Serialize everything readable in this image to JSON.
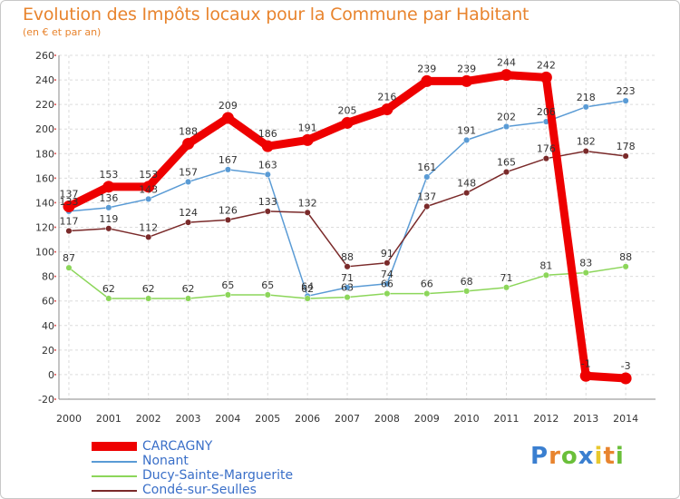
{
  "title": "Evolution des Impôts locaux pour la Commune par Habitant",
  "subtitle": "(en € et par an)",
  "brand": "Proxiti",
  "chart_data": {
    "type": "line",
    "title": "Evolution des Impôts locaux pour la Commune par Habitant",
    "subtitle": "(en € et par an)",
    "x": [
      "2000",
      "2001",
      "2002",
      "2003",
      "2004",
      "2005",
      "2006",
      "2007",
      "2008",
      "2009",
      "2010",
      "2011",
      "2012",
      "2013",
      "2014"
    ],
    "ylim": [
      -20,
      260
    ],
    "yticks": [
      -20,
      0,
      20,
      40,
      60,
      80,
      100,
      120,
      140,
      160,
      180,
      200,
      220,
      240,
      260
    ],
    "grid": true,
    "legend_position": "bottom-left",
    "series": [
      {
        "name": "Nonant",
        "color": "#5a9bd5",
        "values": [
          133,
          136,
          143,
          157,
          167,
          163,
          64,
          71,
          74,
          161,
          191,
          202,
          206,
          218,
          223
        ],
        "labels": [
          "133",
          "136",
          "143",
          "157",
          "167",
          "163",
          "64",
          "71",
          "74",
          "161",
          "191",
          "202",
          "206",
          "218",
          "223"
        ]
      },
      {
        "name": "Ducy-Sainte-Marguerite",
        "color": "#8cd65a",
        "values": [
          87,
          62,
          62,
          62,
          65,
          65,
          62,
          63,
          66,
          66,
          68,
          71,
          81,
          83,
          88
        ],
        "labels": [
          "87",
          "62",
          "62",
          "62",
          "65",
          "65",
          "62",
          "63",
          "66",
          "66",
          "68",
          "71",
          "81",
          "83",
          "88"
        ]
      },
      {
        "name": "Condé-sur-Seulles",
        "color": "#7a2a2a",
        "values": [
          117,
          119,
          112,
          124,
          126,
          133,
          132,
          88,
          91,
          137,
          148,
          165,
          176,
          182,
          178
        ],
        "labels": [
          "117",
          "119",
          "112",
          "124",
          "126",
          "133",
          "132",
          "88",
          "91",
          "137",
          "148",
          "165",
          "176",
          "182",
          "178"
        ]
      },
      {
        "name": "CARCAGNY",
        "color": "#ee0000",
        "values": [
          137,
          153,
          153,
          188,
          209,
          186,
          191,
          205,
          216,
          239,
          239,
          244,
          242,
          -1,
          -3
        ],
        "labels": [
          "137",
          "153",
          "153",
          "188",
          "209",
          "186",
          "191",
          "205",
          "216",
          "239",
          "239",
          "244",
          "242",
          "-1",
          "-3"
        ]
      }
    ]
  },
  "legend": [
    {
      "name": "CARCAGNY",
      "color": "#ee0000",
      "label_color": "#3a6fc8"
    },
    {
      "name": "Nonant",
      "color": "#5a9bd5",
      "label_color": "#3a6fc8"
    },
    {
      "name": "Ducy-Sainte-Marguerite",
      "color": "#8cd65a",
      "label_color": "#3a6fc8"
    },
    {
      "name": "Condé-sur-Seulles",
      "color": "#7a2a2a",
      "label_color": "#3a6fc8"
    }
  ]
}
